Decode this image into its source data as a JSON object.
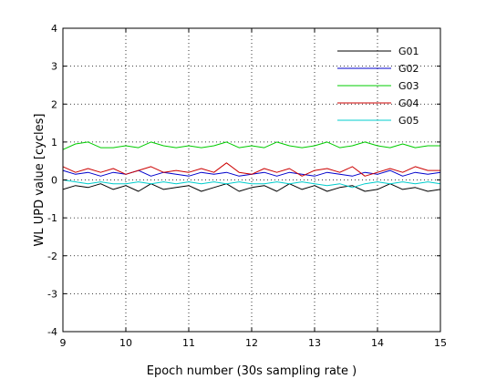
{
  "chart_data": {
    "type": "line",
    "title": "",
    "xlabel": "Epoch number (30s sampling rate )",
    "ylabel": "WL UPD value [cycles]",
    "xlim": [
      9,
      15
    ],
    "ylim": [
      -4,
      4
    ],
    "xticks": [
      9,
      10,
      11,
      12,
      13,
      14,
      15
    ],
    "yticks": [
      -4,
      -3,
      -2,
      -1,
      0,
      1,
      2,
      3,
      4
    ],
    "grid": true,
    "legend_position": "top-right",
    "series": [
      {
        "name": "G01",
        "color": "#000000",
        "x": [
          9.0,
          9.2,
          9.4,
          9.6,
          9.8,
          10.0,
          10.2,
          10.4,
          10.6,
          10.8,
          11.0,
          11.2,
          11.4,
          11.6,
          11.8,
          12.0,
          12.2,
          12.4,
          12.6,
          12.8,
          13.0,
          13.2,
          13.4,
          13.6,
          13.8,
          14.0,
          14.2,
          14.4,
          14.6,
          14.8,
          15.0
        ],
        "y": [
          -0.25,
          -0.15,
          -0.2,
          -0.1,
          -0.25,
          -0.15,
          -0.3,
          -0.1,
          -0.25,
          -0.2,
          -0.15,
          -0.3,
          -0.2,
          -0.1,
          -0.3,
          -0.2,
          -0.15,
          -0.3,
          -0.1,
          -0.25,
          -0.15,
          -0.3,
          -0.2,
          -0.15,
          -0.3,
          -0.25,
          -0.1,
          -0.25,
          -0.2,
          -0.3,
          -0.25
        ]
      },
      {
        "name": "G02",
        "color": "#0000cc",
        "x": [
          9.0,
          9.2,
          9.4,
          9.6,
          9.8,
          10.0,
          10.2,
          10.4,
          10.6,
          10.8,
          11.0,
          11.2,
          11.4,
          11.6,
          11.8,
          12.0,
          12.2,
          12.4,
          12.6,
          12.8,
          13.0,
          13.2,
          13.4,
          13.6,
          13.8,
          14.0,
          14.2,
          14.4,
          14.6,
          14.8,
          15.0
        ],
        "y": [
          0.25,
          0.15,
          0.2,
          0.1,
          0.2,
          0.15,
          0.25,
          0.1,
          0.2,
          0.15,
          0.1,
          0.2,
          0.15,
          0.2,
          0.1,
          0.15,
          0.2,
          0.1,
          0.2,
          0.15,
          0.1,
          0.2,
          0.15,
          0.1,
          0.2,
          0.15,
          0.25,
          0.1,
          0.2,
          0.15,
          0.2
        ]
      },
      {
        "name": "G03",
        "color": "#00cc00",
        "x": [
          9.0,
          9.2,
          9.4,
          9.6,
          9.8,
          10.0,
          10.2,
          10.4,
          10.6,
          10.8,
          11.0,
          11.2,
          11.4,
          11.6,
          11.8,
          12.0,
          12.2,
          12.4,
          12.6,
          12.8,
          13.0,
          13.2,
          13.4,
          13.6,
          13.8,
          14.0,
          14.2,
          14.4,
          14.6,
          14.8,
          15.0
        ],
        "y": [
          0.8,
          0.95,
          1.0,
          0.85,
          0.85,
          0.9,
          0.85,
          1.0,
          0.9,
          0.85,
          0.9,
          0.85,
          0.9,
          1.0,
          0.85,
          0.9,
          0.85,
          1.0,
          0.9,
          0.85,
          0.9,
          1.0,
          0.85,
          0.9,
          1.0,
          0.9,
          0.85,
          0.95,
          0.85,
          0.9,
          0.9
        ]
      },
      {
        "name": "G04",
        "color": "#cc0000",
        "x": [
          9.0,
          9.2,
          9.4,
          9.6,
          9.8,
          10.0,
          10.2,
          10.4,
          10.6,
          10.8,
          11.0,
          11.2,
          11.4,
          11.6,
          11.8,
          12.0,
          12.2,
          12.4,
          12.6,
          12.8,
          13.0,
          13.2,
          13.4,
          13.6,
          13.8,
          14.0,
          14.2,
          14.4,
          14.6,
          14.8,
          15.0
        ],
        "y": [
          0.35,
          0.2,
          0.3,
          0.2,
          0.3,
          0.15,
          0.25,
          0.35,
          0.2,
          0.25,
          0.2,
          0.3,
          0.2,
          0.45,
          0.2,
          0.15,
          0.3,
          0.2,
          0.3,
          0.1,
          0.25,
          0.3,
          0.2,
          0.35,
          0.1,
          0.2,
          0.3,
          0.2,
          0.35,
          0.25,
          0.25
        ]
      },
      {
        "name": "G05",
        "color": "#00cccc",
        "x": [
          9.0,
          9.2,
          9.4,
          9.6,
          9.8,
          10.0,
          10.2,
          10.4,
          10.6,
          10.8,
          11.0,
          11.2,
          11.4,
          11.6,
          11.8,
          12.0,
          12.2,
          12.4,
          12.6,
          12.8,
          13.0,
          13.2,
          13.4,
          13.6,
          13.8,
          14.0,
          14.2,
          14.4,
          14.6,
          14.8,
          15.0
        ],
        "y": [
          0.0,
          -0.05,
          -0.1,
          -0.05,
          -0.1,
          -0.1,
          -0.05,
          -0.1,
          -0.05,
          -0.1,
          -0.05,
          -0.1,
          -0.05,
          -0.1,
          -0.05,
          -0.1,
          -0.1,
          -0.05,
          -0.1,
          -0.05,
          -0.1,
          -0.15,
          -0.1,
          -0.2,
          -0.1,
          -0.05,
          -0.1,
          -0.05,
          -0.1,
          -0.05,
          -0.1
        ]
      }
    ]
  }
}
